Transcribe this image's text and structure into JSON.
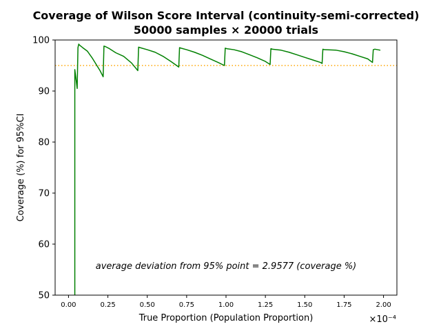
{
  "chart_data": {
    "type": "line",
    "title_line1": "Coverage of Wilson Score Interval (continuity-semi-corrected)",
    "title_line2": "50000 samples × 20000 trials",
    "xlabel": "True Proportion (Population Proportion)",
    "ylabel": "Coverage (%) for 95%CI",
    "x_offset_label": "×10⁻⁴",
    "x_scale": 0.0001,
    "xlim": [
      -0.085,
      2.085
    ],
    "ylim": [
      50,
      100
    ],
    "x_ticks": [
      0.0,
      0.25,
      0.5,
      0.75,
      1.0,
      1.25,
      1.5,
      1.75,
      2.0
    ],
    "x_tick_labels": [
      "0.00",
      "0.25",
      "0.50",
      "0.75",
      "1.00",
      "1.25",
      "1.50",
      "1.75",
      "2.00"
    ],
    "y_ticks": [
      50,
      60,
      70,
      80,
      90,
      100
    ],
    "y_tick_labels": [
      "50",
      "60",
      "70",
      "80",
      "90",
      "100"
    ],
    "reference_line": {
      "y": 95,
      "style": "dotted",
      "color": "#ffa500"
    },
    "annotation": "average deviation from 95% point = 2.9577 (coverage %)",
    "grid": false,
    "series": [
      {
        "color": "#008000",
        "x": [
          0.04,
          0.04,
          0.045,
          0.055,
          0.06,
          0.065,
          0.07,
          0.09,
          0.12,
          0.15,
          0.18,
          0.2,
          0.22,
          0.225,
          0.235,
          0.26,
          0.3,
          0.35,
          0.4,
          0.44,
          0.445,
          0.455,
          0.5,
          0.55,
          0.6,
          0.65,
          0.7,
          0.705,
          0.715,
          0.75,
          0.8,
          0.85,
          0.9,
          0.95,
          0.99,
          0.995,
          1.005,
          1.05,
          1.1,
          1.15,
          1.2,
          1.25,
          1.28,
          1.285,
          1.295,
          1.35,
          1.4,
          1.45,
          1.5,
          1.55,
          1.6,
          1.61,
          1.615,
          1.625,
          1.7,
          1.75,
          1.8,
          1.85,
          1.9,
          1.93,
          1.935,
          1.945,
          1.98
        ],
        "y": [
          50,
          94.2,
          93,
          90.5,
          98.5,
          99.2,
          99,
          98.5,
          97.8,
          96.5,
          95,
          94,
          92.8,
          98.8,
          98.7,
          98.3,
          97.5,
          96.8,
          95.5,
          94,
          98.6,
          98.5,
          98.1,
          97.6,
          96.8,
          95.8,
          94.7,
          98.5,
          98.4,
          98.1,
          97.6,
          97,
          96.3,
          95.6,
          95,
          98.4,
          98.3,
          98.1,
          97.7,
          97.1,
          96.5,
          95.8,
          95.2,
          98.3,
          98.2,
          98,
          97.6,
          97.1,
          96.6,
          96.1,
          95.6,
          95.4,
          98.2,
          98.1,
          98,
          97.7,
          97.3,
          96.8,
          96.3,
          95.6,
          98.1,
          98.2,
          98
        ]
      }
    ]
  }
}
